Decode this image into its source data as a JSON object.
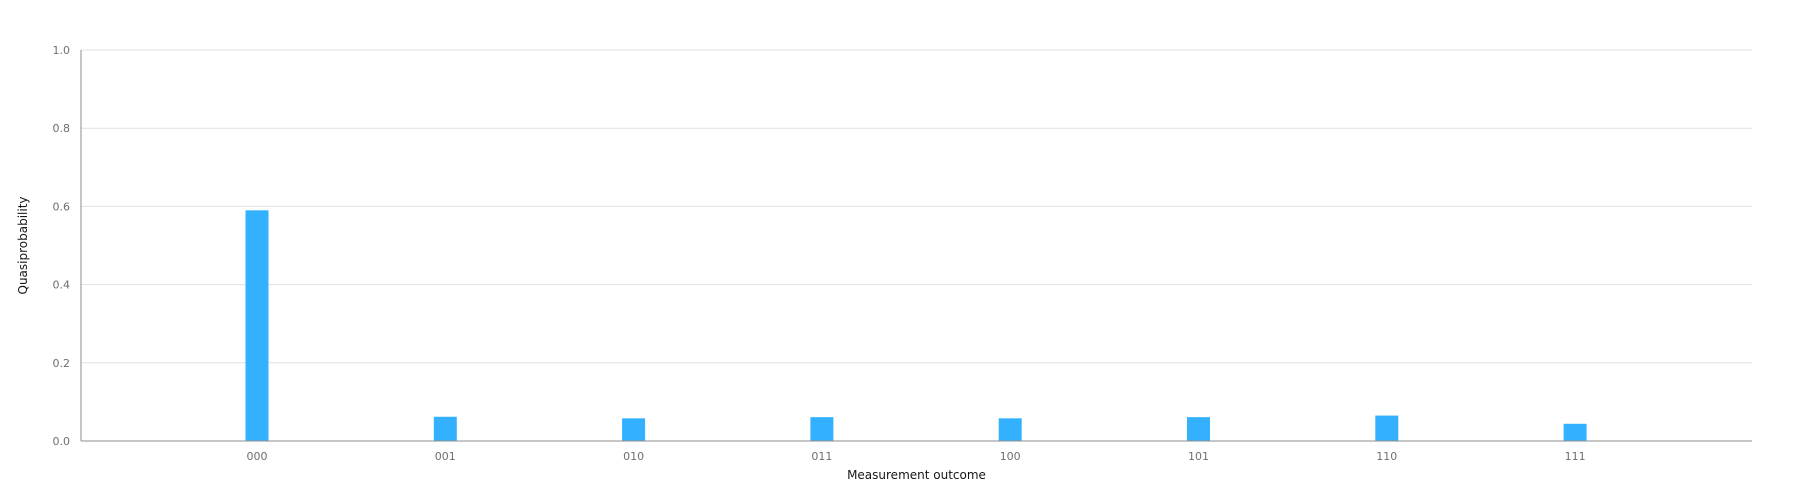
{
  "chart_data": {
    "type": "bar",
    "title": "",
    "xlabel": "Measurement outcome",
    "ylabel": "Quasiprobability",
    "categories": [
      "000",
      "001",
      "010",
      "011",
      "100",
      "101",
      "110",
      "111"
    ],
    "values": [
      0.59,
      0.062,
      0.058,
      0.061,
      0.058,
      0.061,
      0.065,
      0.044
    ],
    "ylim": [
      0,
      1.0
    ],
    "yticks": [
      "0.0",
      "0.2",
      "0.4",
      "0.6",
      "0.8",
      "1.0"
    ],
    "grid": true,
    "legend": "none",
    "bar_color": "#33b1ff"
  }
}
